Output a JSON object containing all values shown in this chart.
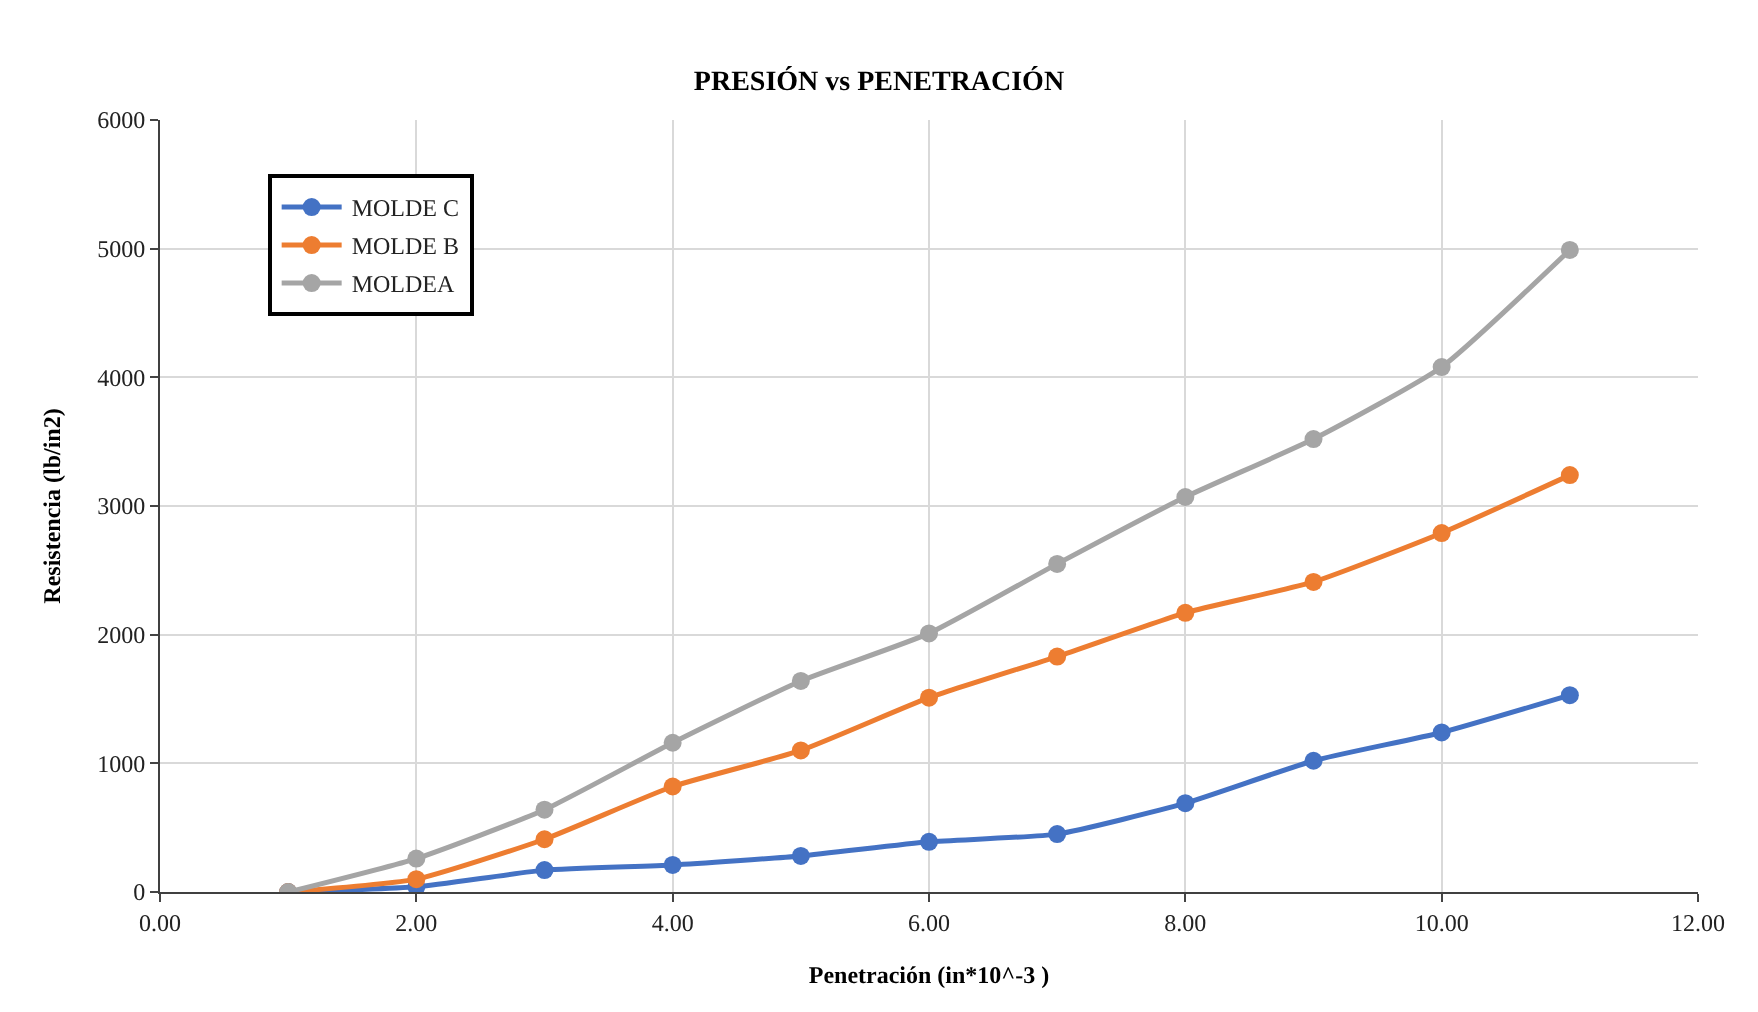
{
  "chart_data": {
    "type": "line",
    "title": "PRESIÓN vs PENETRACIÓN",
    "xlabel": "Penetración (in*10^-3 )",
    "ylabel": "Resistencia (lb/in2)",
    "x": [
      1,
      2,
      3,
      4,
      5,
      6,
      7,
      8,
      9,
      10,
      11
    ],
    "series": [
      {
        "name": "MOLDE C",
        "color": "#4472c4",
        "values": [
          0,
          40,
          170,
          210,
          280,
          390,
          450,
          690,
          1020,
          1240,
          1530
        ]
      },
      {
        "name": "MOLDE B",
        "color": "#ed7d31",
        "values": [
          0,
          100,
          410,
          820,
          1100,
          1510,
          1830,
          2170,
          2410,
          2790,
          3240
        ]
      },
      {
        "name": "MOLDEA",
        "color": "#a5a5a5",
        "values": [
          0,
          260,
          640,
          1160,
          1640,
          2010,
          2550,
          3070,
          3520,
          4080,
          4990
        ]
      }
    ],
    "xlim": [
      0,
      12
    ],
    "xticks": [
      {
        "value": 0,
        "label": "0.00"
      },
      {
        "value": 2,
        "label": "2.00"
      },
      {
        "value": 4,
        "label": "4.00"
      },
      {
        "value": 6,
        "label": "6.00"
      },
      {
        "value": 8,
        "label": "8.00"
      },
      {
        "value": 10,
        "label": "10.00"
      },
      {
        "value": 12,
        "label": "12.00"
      }
    ],
    "ylim": [
      0,
      6000
    ],
    "yticks": [
      0,
      1000,
      2000,
      3000,
      4000,
      5000,
      6000
    ],
    "grid": true,
    "legend": "top left",
    "marker": "circle",
    "line_style": "solid"
  }
}
